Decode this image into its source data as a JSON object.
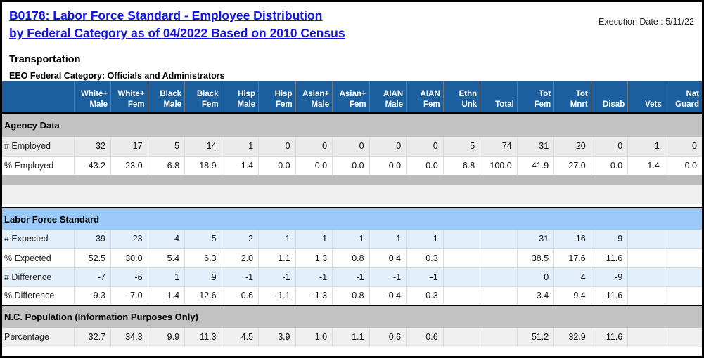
{
  "header": {
    "title_line1": "B0178: Labor Force Standard - Employee Distribution",
    "title_line2": "by Federal Category as of 04/2022 Based on 2010 Census",
    "execution_date": "Execution Date : 5/11/22",
    "program": "Transportation",
    "category_line": "EEO Federal Category:  Officials and Administrators"
  },
  "colors": {
    "title_link": "#1414e6",
    "table_header_bg": "#1c5f9f",
    "section_gray": "#c3c3c3",
    "section_blue": "#9bcaf9",
    "row_light_blue": "#e3effb",
    "row_light_gray": "#ebebeb"
  },
  "table": {
    "columns": [
      "White+\nMale",
      "White+\nFem",
      "Black\nMale",
      "Black\nFem",
      "Hisp\nMale",
      "Hisp\nFem",
      "Asian+\nMale",
      "Asian+\nFem",
      "AIAN\nMale",
      "AIAN\nFem",
      "Ethn\nUnk",
      "Total",
      "Tot\nFem",
      "Tot\nMnrt",
      "Disab",
      "Vets",
      "Nat\nGuard"
    ],
    "sections": [
      {
        "type": "section_header",
        "label": "Agency Data",
        "style": "gray-band"
      },
      {
        "type": "data",
        "label": "# Employed",
        "style": "gray_row",
        "values": [
          "32",
          "17",
          "5",
          "14",
          "1",
          "0",
          "0",
          "0",
          "0",
          "0",
          "5",
          "74",
          "31",
          "20",
          "0",
          "1",
          "0"
        ]
      },
      {
        "type": "data",
        "label": "% Employed",
        "style": "white_row",
        "values": [
          "43.2",
          "23.0",
          "6.8",
          "18.9",
          "1.4",
          "0.0",
          "0.0",
          "0.0",
          "0.0",
          "0.0",
          "6.8",
          "100.0",
          "41.9",
          "27.0",
          "0.0",
          "1.4",
          "0.0"
        ]
      },
      {
        "type": "spacer",
        "style": "spacer-dark"
      },
      {
        "type": "spacer",
        "style": "spacer-light"
      },
      {
        "type": "spacer",
        "style": "spacer-white"
      },
      {
        "type": "section_header",
        "label": "Labor Force Standard",
        "style": "blue-band"
      },
      {
        "type": "data",
        "label": "# Expected",
        "style": "blue_row",
        "values": [
          "39",
          "23",
          "4",
          "5",
          "2",
          "1",
          "1",
          "1",
          "1",
          "1",
          "",
          "",
          "31",
          "16",
          "9",
          "",
          ""
        ]
      },
      {
        "type": "data",
        "label": "% Expected",
        "style": "white_row",
        "values": [
          "52.5",
          "30.0",
          "5.4",
          "6.3",
          "2.0",
          "1.1",
          "1.3",
          "0.8",
          "0.4",
          "0.3",
          "",
          "",
          "38.5",
          "17.6",
          "11.6",
          "",
          ""
        ]
      },
      {
        "type": "data",
        "label": "# Difference",
        "style": "blue_row",
        "values": [
          "-7",
          "-6",
          "1",
          "9",
          "-1",
          "-1",
          "-1",
          "-1",
          "-1",
          "-1",
          "",
          "",
          "0",
          "4",
          "-9",
          "",
          ""
        ]
      },
      {
        "type": "data",
        "label": "% Difference",
        "style": "white_row",
        "values": [
          "-9.3",
          "-7.0",
          "1.4",
          "12.6",
          "-0.6",
          "-1.1",
          "-1.3",
          "-0.8",
          "-0.4",
          "-0.3",
          "",
          "",
          "3.4",
          "9.4",
          "-11.6",
          "",
          ""
        ]
      },
      {
        "type": "section_header",
        "label": "N.C. Population (Information Purposes Only)",
        "style": "gray-band2"
      },
      {
        "type": "data",
        "label": "Percentage",
        "style": "gray2_row",
        "values": [
          "32.7",
          "34.3",
          "9.9",
          "11.3",
          "4.5",
          "3.9",
          "1.0",
          "1.1",
          "0.6",
          "0.6",
          "",
          "",
          "51.2",
          "32.9",
          "11.6",
          "",
          ""
        ]
      }
    ]
  }
}
